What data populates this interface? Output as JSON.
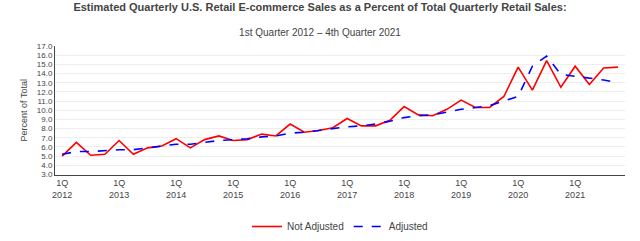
{
  "chart_data": {
    "type": "line",
    "title": "Estimated Quarterly U.S. Retail E-commerce Sales as a Percent of Total Quarterly Retail Sales:",
    "subtitle": "1st Quarter 2012 – 4th Quarter 2021",
    "y_label": "Percent of Total",
    "categories": [
      "1Q\n2012",
      null,
      null,
      null,
      "1Q\n2013",
      null,
      null,
      null,
      "1Q\n2014",
      null,
      null,
      null,
      "1Q\n2015",
      null,
      null,
      null,
      "1Q\n2016",
      null,
      null,
      null,
      "1Q\n2017",
      null,
      null,
      null,
      "1Q\n2018",
      null,
      null,
      null,
      "1Q\n2019",
      null,
      null,
      null,
      "1Q\n2020",
      null,
      null,
      null,
      "1Q\n2021",
      null,
      null,
      null
    ],
    "series": [
      {
        "name": "Not Adjusted",
        "color": "#FF0000",
        "line_style": "solid",
        "values": [
          5.0,
          6.5,
          5.1,
          5.2,
          6.7,
          5.2,
          5.9,
          6.1,
          6.9,
          5.9,
          6.8,
          7.2,
          6.7,
          6.8,
          7.4,
          7.2,
          8.5,
          7.6,
          7.8,
          8.1,
          9.1,
          8.3,
          8.3,
          8.9,
          10.4,
          9.5,
          9.4,
          10.1,
          11.1,
          10.3,
          10.3,
          11.5,
          14.7,
          12.2,
          15.4,
          12.5,
          14.8,
          12.8,
          14.6,
          14.7
        ]
      },
      {
        "name": "Adjusted",
        "color": "#0000FF",
        "line_style": "dashed",
        "values": [
          5.2,
          5.5,
          5.5,
          5.6,
          5.7,
          5.7,
          5.9,
          6.1,
          6.3,
          6.3,
          6.5,
          6.7,
          6.8,
          6.9,
          7.1,
          7.2,
          7.5,
          7.6,
          7.8,
          8.0,
          8.2,
          8.3,
          8.5,
          8.8,
          9.2,
          9.4,
          9.5,
          9.8,
          10.1,
          10.3,
          10.5,
          11.0,
          11.5,
          14.8,
          15.9,
          13.9,
          13.7,
          13.5,
          13.3,
          13.0
        ]
      }
    ],
    "ylim": [
      3.0,
      17.0
    ],
    "yticks": [
      {
        "value": 3,
        "label": "3.0"
      },
      {
        "value": 4,
        "label": "4.0"
      },
      {
        "value": 5,
        "label": "5.0"
      },
      {
        "value": 6,
        "label": "6.0"
      },
      {
        "value": 7,
        "label": "7.0"
      },
      {
        "value": 8,
        "label": "8.0"
      },
      {
        "value": 9,
        "label": "9.0"
      },
      {
        "value": 10,
        "label": "10.0"
      },
      {
        "value": 11,
        "label": "11.0"
      },
      {
        "value": 12,
        "label": "12.0"
      },
      {
        "value": 13,
        "label": "13.0"
      },
      {
        "value": 14,
        "label": "14.0"
      },
      {
        "value": 15,
        "label": "15.0"
      },
      {
        "value": 16,
        "label": "16.0"
      },
      {
        "value": 17,
        "label": "17.0"
      }
    ],
    "grid": true,
    "legend": "bottom"
  }
}
